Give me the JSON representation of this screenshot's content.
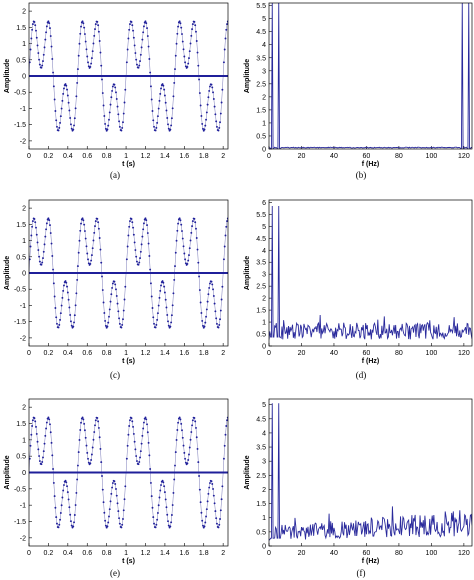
{
  "colors": {
    "signal": "#1f1f9a",
    "line": "#2a2a9c",
    "axis": "#000000"
  },
  "chart_data": [
    {
      "panel": "a",
      "type": "line",
      "caption": "(a)",
      "xlabel": "t (s)",
      "ylabel": "Amplitude",
      "xlim": [
        0,
        2.05
      ],
      "ylim": [
        -2.25,
        2.25
      ],
      "xticks": [
        "0",
        "0.2",
        "0.4",
        "0.6",
        "0.8",
        "1",
        "1.2",
        "1.4",
        "1.6",
        "1.8",
        "2"
      ],
      "yticks": [
        "-2",
        "-1.5",
        "-1",
        "-0.5",
        "0",
        "0.5",
        "1",
        "1.5",
        "2"
      ],
      "signal": {
        "sampling_rate_hz": 125,
        "duration_s": 2.05,
        "components_hz": [
          2,
          6
        ],
        "amplitudes": [
          1.25,
          1.0
        ]
      },
      "zero_line": true
    },
    {
      "panel": "b",
      "type": "line",
      "caption": "(b)",
      "xlabel": "f (Hz)",
      "ylabel": "Amplitude",
      "xlim": [
        0,
        125
      ],
      "ylim": [
        0,
        5.6
      ],
      "xticks": [
        "0",
        "20",
        "40",
        "60",
        "80",
        "100",
        "120"
      ],
      "yticks": [
        "0",
        "0.5",
        "1",
        "1.5",
        "2",
        "2.5",
        "3",
        "3.5",
        "4",
        "4.5",
        "5",
        "5.5"
      ],
      "peaks": [
        {
          "f": 2,
          "amp": 5.6
        },
        {
          "f": 6,
          "amp": 5.6
        },
        {
          "f": 119,
          "amp": 5.6
        },
        {
          "f": 123,
          "amp": 5.6
        }
      ],
      "noise_floor": 0.05
    },
    {
      "panel": "c",
      "type": "line",
      "caption": "(c)",
      "xlabel": "t (s)",
      "ylabel": "Amplitude",
      "xlim": [
        0,
        2.05
      ],
      "ylim": [
        -2.25,
        2.25
      ],
      "xticks": [
        "0",
        "0.2",
        "0.4",
        "0.6",
        "0.8",
        "1",
        "1.2",
        "1.4",
        "1.6",
        "1.8",
        "2"
      ],
      "yticks": [
        "-2",
        "-1.5",
        "-1",
        "-0.5",
        "0",
        "0.5",
        "1",
        "1.5",
        "2"
      ],
      "signal": {
        "sampling_rate_hz": 125,
        "duration_s": 2.05,
        "components_hz": [
          2,
          6
        ],
        "amplitudes": [
          1.25,
          1.0
        ]
      },
      "zero_line": true
    },
    {
      "panel": "d",
      "type": "line",
      "caption": "(d)",
      "xlabel": "f (Hz)",
      "ylabel": "Amplitude",
      "xlim": [
        0,
        125
      ],
      "ylim": [
        0,
        6.1
      ],
      "xticks": [
        "0",
        "20",
        "40",
        "60",
        "80",
        "100",
        "120"
      ],
      "yticks": [
        "0",
        "0.5",
        "1",
        "1.5",
        "2",
        "2.5",
        "3",
        "3.5",
        "4",
        "4.5",
        "5",
        "5.5",
        "6"
      ],
      "peaks": [
        {
          "f": 2,
          "amp": 5.85
        },
        {
          "f": 6,
          "amp": 5.85
        }
      ],
      "noise_floor": 0.75
    },
    {
      "panel": "e",
      "type": "line",
      "caption": "(e)",
      "xlabel": "t (s)",
      "ylabel": "Amplitude",
      "xlim": [
        0,
        2.05
      ],
      "ylim": [
        -2.25,
        2.25
      ],
      "xticks": [
        "0",
        "0.2",
        "0.4",
        "0.6",
        "0.8",
        "1",
        "1.2",
        "1.4",
        "1.6",
        "1.8",
        "2"
      ],
      "yticks": [
        "-2",
        "-1.5",
        "-1",
        "-0.5",
        "0",
        "0.5",
        "1",
        "1.5",
        "2"
      ],
      "signal": {
        "sampling_rate_hz": 125,
        "duration_s": 2.05,
        "components_hz": [
          2,
          6
        ],
        "amplitudes": [
          1.25,
          1.0
        ]
      },
      "zero_line": true
    },
    {
      "panel": "f",
      "type": "line",
      "caption": "(f)",
      "xlabel": "f (Hz)",
      "ylabel": "Amplitude",
      "xlim": [
        0,
        125
      ],
      "ylim": [
        0,
        5.2
      ],
      "xticks": [
        "0",
        "20",
        "40",
        "60",
        "80",
        "100",
        "120"
      ],
      "yticks": [
        "0",
        "0.5",
        "1",
        "1.5",
        "2",
        "2.5",
        "3",
        "3.5",
        "4",
        "4.5",
        "5"
      ],
      "peaks": [
        {
          "f": 2,
          "amp": 5.05
        },
        {
          "f": 6,
          "amp": 5.05
        }
      ],
      "noise_floor": 0.55,
      "noise_trend": 0.45
    }
  ]
}
